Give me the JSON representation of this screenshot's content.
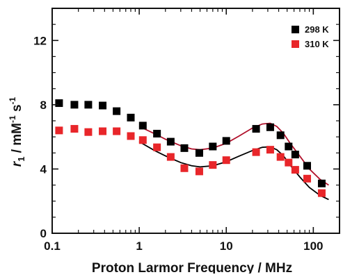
{
  "chart_data": {
    "type": "scatter",
    "title": "",
    "xlabel": "Proton Larmor Frequency / MHz",
    "ylabel": {
      "r": "r",
      "sub": "1",
      "mid": " / mM",
      "sup1": "-1",
      "s": " s",
      "sup2": "-1"
    },
    "x_scale": "log",
    "xlim": [
      0.1,
      200
    ],
    "ylim": [
      0,
      14
    ],
    "x_ticks": [
      0.1,
      1,
      10,
      100
    ],
    "x_tick_labels": [
      "0.1",
      "1",
      "10",
      "100"
    ],
    "y_ticks": [
      0,
      4,
      8,
      12
    ],
    "y_tick_labels": [
      "0",
      "4",
      "8",
      "12"
    ],
    "legend_position": "top-right",
    "series": [
      {
        "name": "298 K",
        "color": "#000000",
        "marker": "square",
        "x": [
          0.12,
          0.18,
          0.26,
          0.38,
          0.55,
          0.8,
          1.1,
          1.6,
          2.3,
          3.3,
          4.9,
          7.0,
          10.0,
          22.0,
          32.0,
          42.0,
          52.0,
          62.0,
          85.0,
          125.0
        ],
        "y": [
          8.1,
          8.0,
          8.0,
          7.95,
          7.6,
          7.2,
          6.7,
          6.2,
          5.7,
          5.3,
          5.0,
          5.4,
          5.75,
          6.5,
          6.6,
          6.1,
          5.4,
          4.9,
          4.2,
          3.1
        ]
      },
      {
        "name": "310 K",
        "color": "#e8262a",
        "marker": "square",
        "x": [
          0.12,
          0.18,
          0.26,
          0.38,
          0.55,
          0.8,
          1.1,
          1.6,
          2.3,
          3.3,
          4.9,
          7.0,
          10.0,
          22.0,
          32.0,
          42.0,
          52.0,
          62.0,
          85.0,
          125.0
        ],
        "y": [
          6.4,
          6.5,
          6.3,
          6.35,
          6.35,
          6.05,
          5.8,
          5.35,
          4.75,
          4.05,
          3.85,
          4.25,
          4.55,
          5.05,
          5.2,
          4.75,
          4.4,
          3.95,
          3.4,
          2.5
        ]
      }
    ],
    "fits": [
      {
        "color": "#000000",
        "x": [
          1.0,
          1.5,
          2.0,
          3.0,
          4.0,
          5.0,
          7.0,
          10.0,
          14.0,
          20.0,
          26.0,
          32.0,
          38.0,
          45.0,
          55.0,
          70.0,
          90.0,
          120.0,
          150.0
        ],
        "y": [
          5.7,
          5.15,
          4.82,
          4.4,
          4.2,
          4.13,
          4.2,
          4.45,
          4.8,
          5.15,
          5.35,
          5.38,
          5.2,
          4.85,
          4.2,
          3.5,
          2.85,
          2.35,
          2.1
        ]
      },
      {
        "color": "#b0102a",
        "x": [
          1.0,
          1.5,
          2.0,
          3.0,
          4.0,
          5.0,
          7.0,
          10.0,
          14.0,
          20.0,
          26.0,
          32.0,
          38.0,
          45.0,
          55.0,
          70.0,
          90.0,
          120.0,
          150.0
        ],
        "y": [
          6.65,
          6.2,
          5.85,
          5.45,
          5.25,
          5.2,
          5.3,
          5.6,
          6.05,
          6.55,
          6.8,
          6.85,
          6.65,
          6.25,
          5.55,
          4.8,
          4.0,
          3.35,
          3.0
        ]
      }
    ]
  }
}
